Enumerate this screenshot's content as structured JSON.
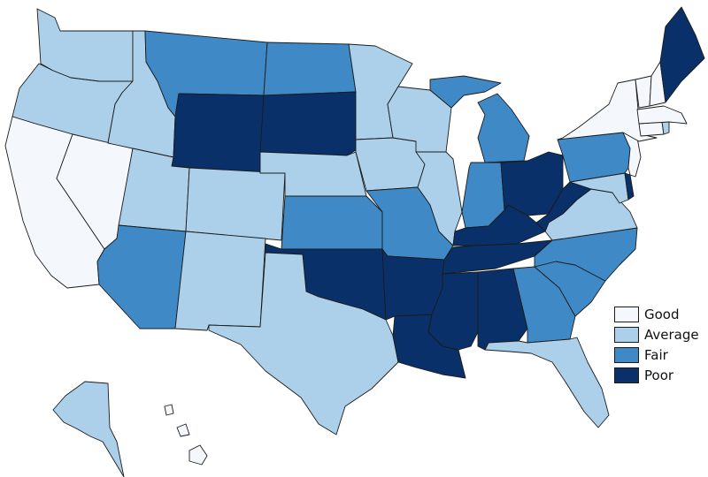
{
  "legend": {
    "items": [
      {
        "label": "Good",
        "color": "#f4f8fd"
      },
      {
        "label": "Average",
        "color": "#acd0e9"
      },
      {
        "label": "Fair",
        "color": "#3f8ac6"
      },
      {
        "label": "Poor",
        "color": "#093068"
      }
    ]
  },
  "states": [
    {
      "name": "WA",
      "category": "Average"
    },
    {
      "name": "OR",
      "category": "Average"
    },
    {
      "name": "CA",
      "category": "Good"
    },
    {
      "name": "NV",
      "category": "Good"
    },
    {
      "name": "ID",
      "category": "Average"
    },
    {
      "name": "MT",
      "category": "Fair"
    },
    {
      "name": "WY",
      "category": "Poor"
    },
    {
      "name": "UT",
      "category": "Average"
    },
    {
      "name": "AZ",
      "category": "Fair"
    },
    {
      "name": "CO",
      "category": "Average"
    },
    {
      "name": "NM",
      "category": "Average"
    },
    {
      "name": "ND",
      "category": "Fair"
    },
    {
      "name": "SD",
      "category": "Poor"
    },
    {
      "name": "NE",
      "category": "Average"
    },
    {
      "name": "KS",
      "category": "Fair"
    },
    {
      "name": "OK",
      "category": "Poor"
    },
    {
      "name": "TX",
      "category": "Average"
    },
    {
      "name": "MN",
      "category": "Average"
    },
    {
      "name": "IA",
      "category": "Average"
    },
    {
      "name": "MO",
      "category": "Fair"
    },
    {
      "name": "AR",
      "category": "Poor"
    },
    {
      "name": "LA",
      "category": "Poor"
    },
    {
      "name": "WI",
      "category": "Average"
    },
    {
      "name": "IL",
      "category": "Average"
    },
    {
      "name": "MI",
      "category": "Fair"
    },
    {
      "name": "IN",
      "category": "Fair"
    },
    {
      "name": "OH",
      "category": "Poor"
    },
    {
      "name": "KY",
      "category": "Poor"
    },
    {
      "name": "TN",
      "category": "Poor"
    },
    {
      "name": "MS",
      "category": "Poor"
    },
    {
      "name": "AL",
      "category": "Poor"
    },
    {
      "name": "GA",
      "category": "Fair"
    },
    {
      "name": "FL",
      "category": "Average"
    },
    {
      "name": "SC",
      "category": "Fair"
    },
    {
      "name": "NC",
      "category": "Fair"
    },
    {
      "name": "VA",
      "category": "Average"
    },
    {
      "name": "WV",
      "category": "Poor"
    },
    {
      "name": "MD",
      "category": "Average"
    },
    {
      "name": "DE",
      "category": "Poor"
    },
    {
      "name": "PA",
      "category": "Fair"
    },
    {
      "name": "NJ",
      "category": "Good"
    },
    {
      "name": "NY",
      "category": "Good"
    },
    {
      "name": "CT",
      "category": "Good"
    },
    {
      "name": "RI",
      "category": "Average"
    },
    {
      "name": "MA",
      "category": "Good"
    },
    {
      "name": "VT",
      "category": "Good"
    },
    {
      "name": "NH",
      "category": "Good"
    },
    {
      "name": "ME",
      "category": "Poor"
    },
    {
      "name": "AK",
      "category": "Average"
    },
    {
      "name": "HI",
      "category": "Good"
    }
  ]
}
